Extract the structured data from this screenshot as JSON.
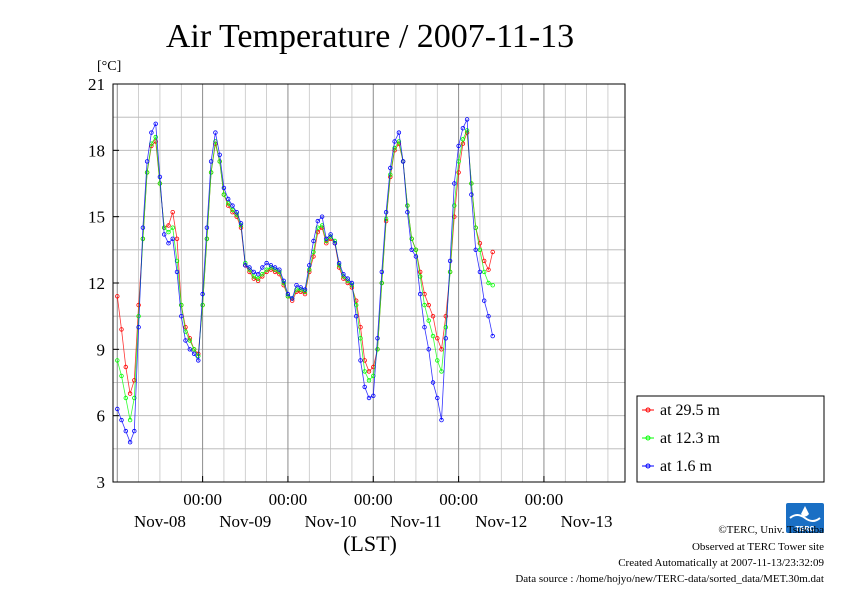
{
  "chart_data": {
    "type": "line",
    "title": "Air Temperature / 2007-11-13",
    "yunit": "[°C]",
    "xlabel": "(LST)",
    "ylim": [
      3,
      21
    ],
    "yticks": [
      3,
      6,
      9,
      12,
      15,
      18,
      21
    ],
    "xlim": [
      -1.05,
      4.95
    ],
    "x_unit": "days since Nov-08 00:00",
    "x_tick_time_label": "00:00",
    "x_ticks": [
      {
        "x": 0,
        "date": "Nov-08"
      },
      {
        "x": 1,
        "date": "Nov-09"
      },
      {
        "x": 2,
        "date": "Nov-10"
      },
      {
        "x": 3,
        "date": "Nov-11"
      },
      {
        "x": 4,
        "date": "Nov-12"
      },
      {
        "x": 5,
        "date": "Nov-13"
      }
    ],
    "grid": true,
    "legend_position": "right-bottom",
    "series": [
      {
        "name": "at 29.5 m",
        "color": "#ff0000",
        "points": [
          [
            -1.0,
            11.4
          ],
          [
            -0.95,
            9.9
          ],
          [
            -0.9,
            8.2
          ],
          [
            -0.85,
            7.0
          ],
          [
            -0.8,
            7.6
          ],
          [
            -0.75,
            11.0
          ],
          [
            -0.7,
            14.0
          ],
          [
            -0.65,
            17.0
          ],
          [
            -0.6,
            18.2
          ],
          [
            -0.55,
            18.4
          ],
          [
            -0.5,
            16.5
          ],
          [
            -0.45,
            14.5
          ],
          [
            -0.4,
            14.6
          ],
          [
            -0.35,
            15.2
          ],
          [
            -0.3,
            14.0
          ],
          [
            -0.25,
            11.0
          ],
          [
            -0.2,
            10.0
          ],
          [
            -0.15,
            9.5
          ],
          [
            -0.1,
            9.0
          ],
          [
            -0.05,
            8.8
          ],
          [
            0.0,
            11.0
          ],
          [
            0.05,
            14.0
          ],
          [
            0.1,
            17.0
          ],
          [
            0.15,
            18.3
          ],
          [
            0.2,
            17.5
          ],
          [
            0.25,
            16.0
          ],
          [
            0.3,
            15.5
          ],
          [
            0.35,
            15.2
          ],
          [
            0.4,
            15.0
          ],
          [
            0.45,
            14.5
          ],
          [
            0.5,
            12.8
          ],
          [
            0.55,
            12.5
          ],
          [
            0.6,
            12.2
          ],
          [
            0.65,
            12.1
          ],
          [
            0.7,
            12.3
          ],
          [
            0.75,
            12.5
          ],
          [
            0.8,
            12.6
          ],
          [
            0.85,
            12.5
          ],
          [
            0.9,
            12.4
          ],
          [
            0.95,
            11.9
          ],
          [
            1.0,
            11.4
          ],
          [
            1.05,
            11.2
          ],
          [
            1.1,
            11.6
          ],
          [
            1.15,
            11.6
          ],
          [
            1.2,
            11.5
          ],
          [
            1.25,
            12.5
          ],
          [
            1.3,
            13.2
          ],
          [
            1.35,
            14.3
          ],
          [
            1.4,
            14.5
          ],
          [
            1.45,
            13.8
          ],
          [
            1.5,
            14.0
          ],
          [
            1.55,
            13.8
          ],
          [
            1.6,
            12.7
          ],
          [
            1.65,
            12.2
          ],
          [
            1.7,
            12.0
          ],
          [
            1.75,
            11.8
          ],
          [
            1.8,
            11.2
          ],
          [
            1.85,
            10.0
          ],
          [
            1.9,
            8.5
          ],
          [
            1.95,
            8.0
          ],
          [
            2.0,
            8.2
          ],
          [
            2.05,
            9.0
          ],
          [
            2.1,
            12.0
          ],
          [
            2.15,
            14.8
          ],
          [
            2.2,
            16.8
          ],
          [
            2.25,
            18.0
          ],
          [
            2.3,
            18.3
          ],
          [
            2.35,
            17.5
          ],
          [
            2.4,
            15.5
          ],
          [
            2.45,
            14.0
          ],
          [
            2.5,
            13.5
          ],
          [
            2.55,
            12.5
          ],
          [
            2.6,
            11.5
          ],
          [
            2.65,
            11.0
          ],
          [
            2.7,
            10.5
          ],
          [
            2.75,
            9.5
          ],
          [
            2.8,
            9.0
          ],
          [
            2.85,
            10.5
          ],
          [
            2.9,
            12.5
          ],
          [
            2.95,
            15.0
          ],
          [
            3.0,
            17.0
          ],
          [
            3.05,
            18.3
          ],
          [
            3.1,
            18.8
          ],
          [
            3.15,
            16.5
          ],
          [
            3.2,
            14.5
          ],
          [
            3.25,
            13.8
          ],
          [
            3.3,
            13.0
          ],
          [
            3.35,
            12.6
          ],
          [
            3.4,
            13.4
          ]
        ]
      },
      {
        "name": "at 12.3 m",
        "color": "#00ff00",
        "points": [
          [
            -1.0,
            8.5
          ],
          [
            -0.95,
            7.8
          ],
          [
            -0.9,
            6.8
          ],
          [
            -0.85,
            5.8
          ],
          [
            -0.8,
            6.8
          ],
          [
            -0.75,
            10.5
          ],
          [
            -0.7,
            14.0
          ],
          [
            -0.65,
            17.0
          ],
          [
            -0.6,
            18.3
          ],
          [
            -0.55,
            18.6
          ],
          [
            -0.5,
            16.5
          ],
          [
            -0.45,
            14.5
          ],
          [
            -0.4,
            14.3
          ],
          [
            -0.35,
            14.5
          ],
          [
            -0.3,
            13.0
          ],
          [
            -0.25,
            11.0
          ],
          [
            -0.2,
            9.8
          ],
          [
            -0.15,
            9.4
          ],
          [
            -0.1,
            9.0
          ],
          [
            -0.05,
            8.7
          ],
          [
            0.0,
            11.0
          ],
          [
            0.05,
            14.0
          ],
          [
            0.1,
            17.0
          ],
          [
            0.15,
            18.4
          ],
          [
            0.2,
            17.5
          ],
          [
            0.25,
            16.0
          ],
          [
            0.3,
            15.6
          ],
          [
            0.35,
            15.3
          ],
          [
            0.4,
            15.1
          ],
          [
            0.45,
            14.6
          ],
          [
            0.5,
            12.9
          ],
          [
            0.55,
            12.6
          ],
          [
            0.6,
            12.3
          ],
          [
            0.65,
            12.2
          ],
          [
            0.7,
            12.4
          ],
          [
            0.75,
            12.6
          ],
          [
            0.8,
            12.7
          ],
          [
            0.85,
            12.6
          ],
          [
            0.9,
            12.5
          ],
          [
            0.95,
            12.0
          ],
          [
            1.0,
            11.4
          ],
          [
            1.05,
            11.3
          ],
          [
            1.1,
            11.7
          ],
          [
            1.15,
            11.7
          ],
          [
            1.2,
            11.6
          ],
          [
            1.25,
            12.6
          ],
          [
            1.3,
            13.4
          ],
          [
            1.35,
            14.5
          ],
          [
            1.4,
            14.6
          ],
          [
            1.45,
            13.9
          ],
          [
            1.5,
            14.1
          ],
          [
            1.55,
            13.9
          ],
          [
            1.6,
            12.8
          ],
          [
            1.65,
            12.3
          ],
          [
            1.7,
            12.1
          ],
          [
            1.75,
            11.9
          ],
          [
            1.8,
            11.0
          ],
          [
            1.85,
            9.5
          ],
          [
            1.9,
            8.0
          ],
          [
            1.95,
            7.6
          ],
          [
            2.0,
            7.8
          ],
          [
            2.05,
            9.0
          ],
          [
            2.1,
            12.0
          ],
          [
            2.15,
            14.9
          ],
          [
            2.2,
            16.9
          ],
          [
            2.25,
            18.1
          ],
          [
            2.3,
            18.4
          ],
          [
            2.35,
            17.5
          ],
          [
            2.4,
            15.5
          ],
          [
            2.45,
            14.0
          ],
          [
            2.5,
            13.5
          ],
          [
            2.55,
            12.3
          ],
          [
            2.6,
            11.0
          ],
          [
            2.65,
            10.3
          ],
          [
            2.7,
            9.6
          ],
          [
            2.75,
            8.5
          ],
          [
            2.8,
            8.0
          ],
          [
            2.85,
            10.0
          ],
          [
            2.9,
            12.5
          ],
          [
            2.95,
            15.5
          ],
          [
            3.0,
            17.5
          ],
          [
            3.05,
            18.5
          ],
          [
            3.1,
            18.9
          ],
          [
            3.15,
            16.5
          ],
          [
            3.2,
            14.5
          ],
          [
            3.25,
            13.5
          ],
          [
            3.3,
            12.5
          ],
          [
            3.35,
            12.0
          ],
          [
            3.4,
            11.9
          ]
        ]
      },
      {
        "name": "at 1.6 m",
        "color": "#0000ff",
        "points": [
          [
            -1.0,
            6.3
          ],
          [
            -0.95,
            5.8
          ],
          [
            -0.9,
            5.3
          ],
          [
            -0.85,
            4.8
          ],
          [
            -0.8,
            5.3
          ],
          [
            -0.75,
            10.0
          ],
          [
            -0.7,
            14.5
          ],
          [
            -0.65,
            17.5
          ],
          [
            -0.6,
            18.8
          ],
          [
            -0.55,
            19.2
          ],
          [
            -0.5,
            16.8
          ],
          [
            -0.45,
            14.2
          ],
          [
            -0.4,
            13.8
          ],
          [
            -0.35,
            14.0
          ],
          [
            -0.3,
            12.5
          ],
          [
            -0.25,
            10.5
          ],
          [
            -0.2,
            9.4
          ],
          [
            -0.15,
            9.0
          ],
          [
            -0.1,
            8.8
          ],
          [
            -0.05,
            8.5
          ],
          [
            0.0,
            11.5
          ],
          [
            0.05,
            14.5
          ],
          [
            0.1,
            17.5
          ],
          [
            0.15,
            18.8
          ],
          [
            0.2,
            17.8
          ],
          [
            0.25,
            16.3
          ],
          [
            0.3,
            15.8
          ],
          [
            0.35,
            15.5
          ],
          [
            0.4,
            15.2
          ],
          [
            0.45,
            14.7
          ],
          [
            0.5,
            12.8
          ],
          [
            0.55,
            12.7
          ],
          [
            0.6,
            12.5
          ],
          [
            0.65,
            12.4
          ],
          [
            0.7,
            12.7
          ],
          [
            0.75,
            12.9
          ],
          [
            0.8,
            12.8
          ],
          [
            0.85,
            12.7
          ],
          [
            0.9,
            12.6
          ],
          [
            0.95,
            12.1
          ],
          [
            1.0,
            11.5
          ],
          [
            1.05,
            11.3
          ],
          [
            1.1,
            11.9
          ],
          [
            1.15,
            11.8
          ],
          [
            1.2,
            11.7
          ],
          [
            1.25,
            12.8
          ],
          [
            1.3,
            13.9
          ],
          [
            1.35,
            14.8
          ],
          [
            1.4,
            15.0
          ],
          [
            1.45,
            14.0
          ],
          [
            1.5,
            14.2
          ],
          [
            1.55,
            13.8
          ],
          [
            1.6,
            12.9
          ],
          [
            1.65,
            12.4
          ],
          [
            1.7,
            12.2
          ],
          [
            1.75,
            12.0
          ],
          [
            1.8,
            10.5
          ],
          [
            1.85,
            8.5
          ],
          [
            1.9,
            7.3
          ],
          [
            1.95,
            6.8
          ],
          [
            2.0,
            6.9
          ],
          [
            2.05,
            9.5
          ],
          [
            2.1,
            12.5
          ],
          [
            2.15,
            15.2
          ],
          [
            2.2,
            17.2
          ],
          [
            2.25,
            18.4
          ],
          [
            2.3,
            18.8
          ],
          [
            2.35,
            17.5
          ],
          [
            2.4,
            15.2
          ],
          [
            2.45,
            13.5
          ],
          [
            2.5,
            13.2
          ],
          [
            2.55,
            11.5
          ],
          [
            2.6,
            10.0
          ],
          [
            2.65,
            9.0
          ],
          [
            2.7,
            7.5
          ],
          [
            2.75,
            6.8
          ],
          [
            2.8,
            5.8
          ],
          [
            2.85,
            9.5
          ],
          [
            2.9,
            13.0
          ],
          [
            2.95,
            16.5
          ],
          [
            3.0,
            18.2
          ],
          [
            3.05,
            19.0
          ],
          [
            3.1,
            19.4
          ],
          [
            3.15,
            16.0
          ],
          [
            3.2,
            13.5
          ],
          [
            3.25,
            12.5
          ],
          [
            3.3,
            11.2
          ],
          [
            3.35,
            10.5
          ],
          [
            3.4,
            9.6
          ]
        ]
      }
    ]
  },
  "credits": {
    "org": "©TERC, Univ. Tsukuba",
    "site": "Observed at TERC Tower site",
    "created": "Created Automatically at 2007-11-13/23:32:09",
    "source": "Data source : /home/hojyo/new/TERC-data/sorted_data/MET.30m.dat"
  },
  "logo": {
    "text": "TERC",
    "color": "#1a6fc4"
  }
}
